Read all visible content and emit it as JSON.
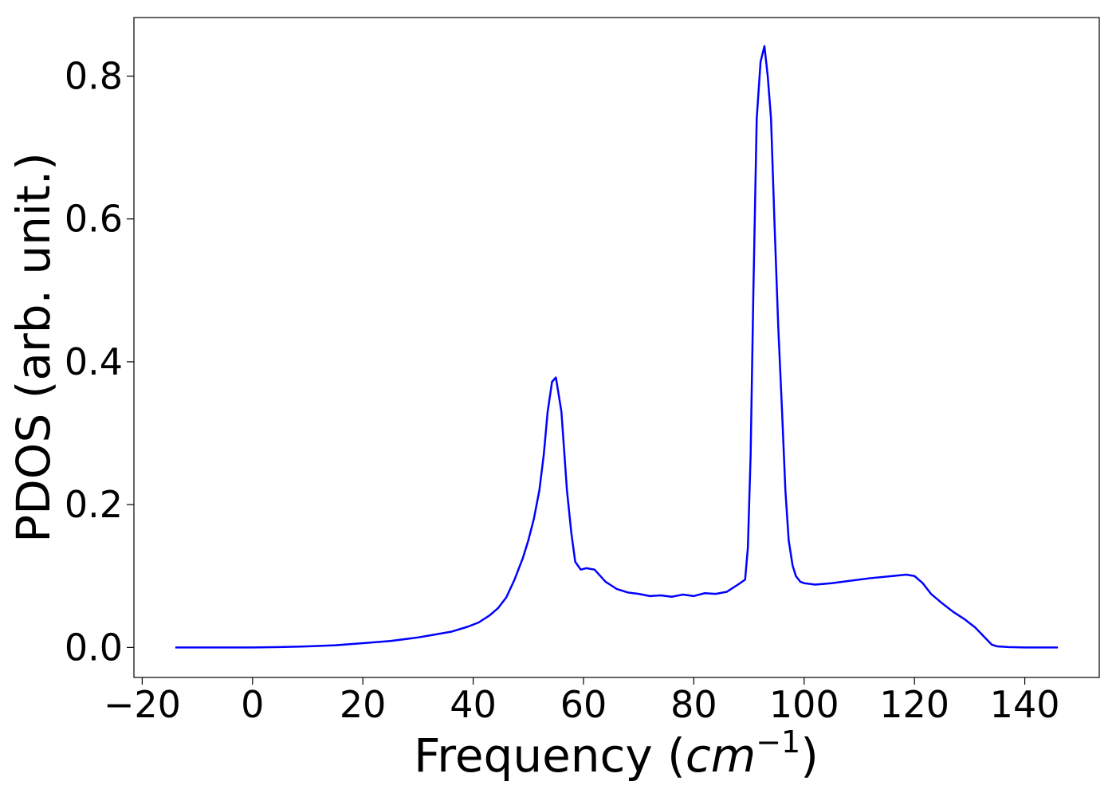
{
  "chart_data": {
    "type": "line",
    "xlabel_main": "Frequency (",
    "xlabel_unit": "cm",
    "xlabel_exp": "−1",
    "xlabel_close": ")",
    "ylabel": "PDOS (arb. unit.)",
    "xlim": [
      -21.5,
      153.5
    ],
    "ylim": [
      -0.042,
      0.882
    ],
    "xticks": [
      -20,
      0,
      20,
      40,
      60,
      80,
      100,
      120,
      140
    ],
    "xtick_labels": [
      "−20",
      "0",
      "20",
      "40",
      "60",
      "80",
      "100",
      "120",
      "140"
    ],
    "yticks": [
      0.0,
      0.2,
      0.4,
      0.6,
      0.8
    ],
    "ytick_labels": [
      "0.0",
      "0.2",
      "0.4",
      "0.6",
      "0.8"
    ],
    "grid": false,
    "line_color": "#0000ff",
    "series": [
      {
        "x": [
          -14,
          -5,
          0,
          5,
          10,
          15,
          20,
          25,
          30,
          33,
          36,
          39,
          41,
          43,
          44.5,
          46,
          47.5,
          49,
          50,
          51,
          52,
          52.8,
          53.5,
          54.3,
          55,
          56,
          57,
          57.8,
          58.5,
          59.5,
          60.5,
          62,
          64,
          66,
          68,
          70,
          72,
          74,
          76,
          78,
          80,
          82,
          84,
          86,
          88,
          89.3,
          89.8,
          90.3,
          90.8,
          91.4,
          92.1,
          92.8,
          93.4,
          94,
          94.6,
          95.3,
          96,
          96.6,
          97.2,
          97.9,
          98.5,
          99.3,
          100,
          102,
          105,
          108,
          112,
          116,
          118.5,
          120,
          121.5,
          123,
          125,
          127,
          129,
          131,
          133,
          134,
          135,
          137,
          140,
          146
        ],
        "y": [
          0.0,
          0.0,
          0.0,
          0.0005,
          0.0015,
          0.003,
          0.006,
          0.009,
          0.014,
          0.018,
          0.022,
          0.029,
          0.035,
          0.045,
          0.055,
          0.07,
          0.095,
          0.125,
          0.15,
          0.18,
          0.22,
          0.27,
          0.33,
          0.372,
          0.378,
          0.33,
          0.22,
          0.16,
          0.12,
          0.109,
          0.111,
          0.109,
          0.092,
          0.082,
          0.077,
          0.075,
          0.072,
          0.073,
          0.071,
          0.074,
          0.072,
          0.076,
          0.075,
          0.078,
          0.088,
          0.095,
          0.14,
          0.27,
          0.5,
          0.74,
          0.82,
          0.842,
          0.8,
          0.74,
          0.6,
          0.45,
          0.33,
          0.22,
          0.15,
          0.115,
          0.1,
          0.092,
          0.09,
          0.088,
          0.09,
          0.093,
          0.097,
          0.1,
          0.102,
          0.1,
          0.09,
          0.075,
          0.062,
          0.05,
          0.04,
          0.028,
          0.012,
          0.004,
          0.0015,
          0.0005,
          0.0,
          0.0
        ]
      }
    ]
  }
}
